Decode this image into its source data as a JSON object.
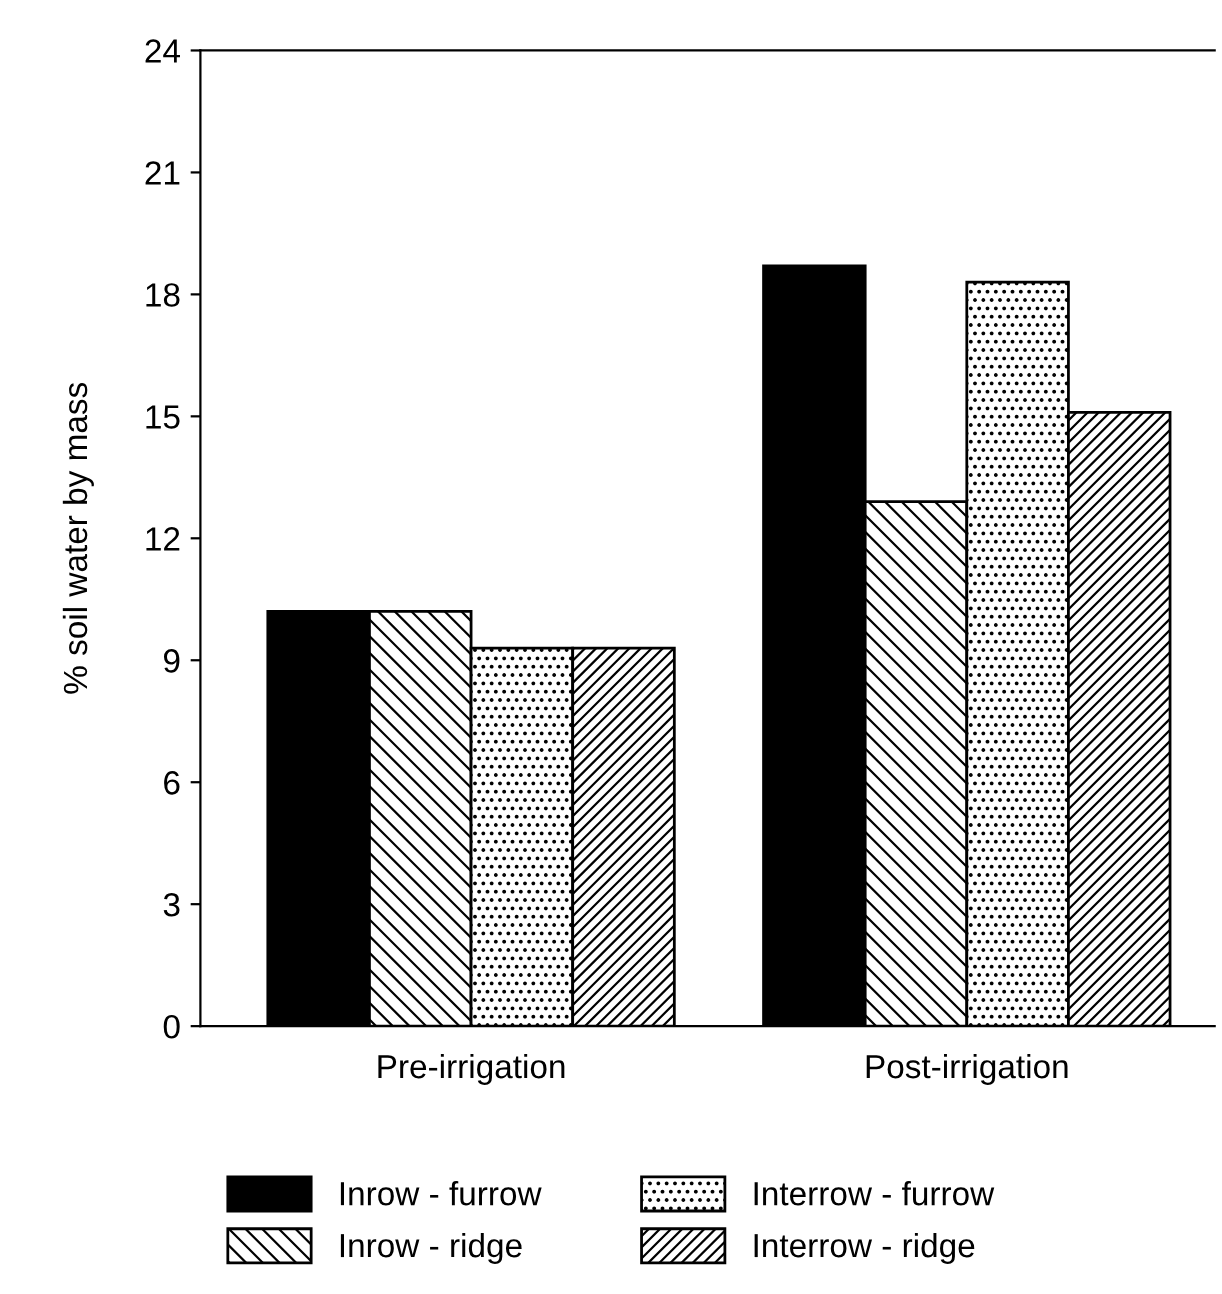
{
  "chart_data": {
    "type": "bar",
    "ylabel": "% soil water by mass",
    "categories": [
      "Pre-irrigation",
      "Post-irrigation"
    ],
    "series": [
      {
        "name": "Inrow - furrow",
        "color": "#000000",
        "values": [
          10.2,
          18.7
        ]
      },
      {
        "name": "Inrow - ridge",
        "color": "#000000",
        "values": [
          10.2,
          12.9
        ]
      },
      {
        "name": "Interrow - furrow",
        "color": "#000000",
        "values": [
          9.3,
          18.3
        ]
      },
      {
        "name": "Interrow - ridge",
        "color": "#000000",
        "values": [
          9.3,
          15.1
        ]
      }
    ],
    "ylim": [
      0,
      24
    ],
    "yticks": [
      0,
      3,
      6,
      9,
      12,
      15,
      18,
      21,
      24
    ],
    "grid": false,
    "legend": "bottom"
  }
}
